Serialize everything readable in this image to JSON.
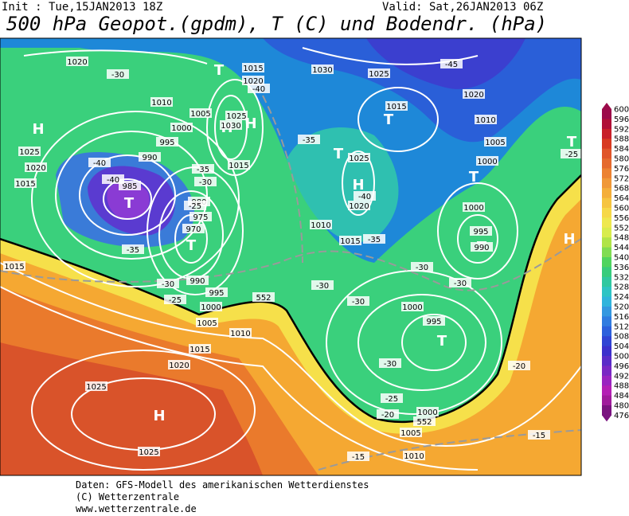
{
  "header": {
    "init": "Init : Tue,15JAN2013 18Z",
    "valid": "Valid: Sat,26JAN2013 06Z",
    "title": "500 hPa Geopot.(gpdm), T (C) und Bodendr. (hPa)"
  },
  "colorbar": {
    "labels": [
      600,
      596,
      592,
      588,
      584,
      580,
      576,
      572,
      568,
      564,
      560,
      556,
      552,
      548,
      544,
      540,
      536,
      532,
      528,
      524,
      520,
      516,
      512,
      508,
      504,
      500,
      496,
      492,
      488,
      484,
      480,
      476
    ]
  },
  "map": {
    "labels": [
      "H",
      "T",
      "T",
      "H",
      "T",
      "T",
      "H",
      "T",
      "T",
      "H",
      "T",
      "T",
      "H",
      "T",
      "H",
      "1020",
      "1025",
      "1020",
      "1015",
      "1010",
      "1005",
      "1000",
      "995",
      "990",
      "985",
      "980",
      "975",
      "970",
      "1015",
      "1020",
      "1025",
      "1030",
      "1015",
      "1030",
      "1025",
      "1020",
      "1015",
      "1010",
      "1005",
      "1000",
      "1000",
      "995",
      "990",
      "1025",
      "1020",
      "1015",
      "1010",
      "1000",
      "995",
      "1000",
      "995",
      "990",
      "1005",
      "1010",
      "1015",
      "1020",
      "1025",
      "1025",
      "1000",
      "1005",
      "1010",
      "1015",
      "-30",
      "-40",
      "-40",
      "-35",
      "-30",
      "-25",
      "-25",
      "-30",
      "-35",
      "-40",
      "-35",
      "-40",
      "-35",
      "-30",
      "-30",
      "-30",
      "-30",
      "-30",
      "-25",
      "-20",
      "-20",
      "-15",
      "-15",
      "-45",
      "-25",
      "552",
      "552"
    ]
  },
  "footer": {
    "lines": [
      "Daten: GFS-Modell des amerikanischen Wetterdienstes",
      "(C) Wetterzentrale",
      "www.wetterzentrale.de"
    ]
  }
}
